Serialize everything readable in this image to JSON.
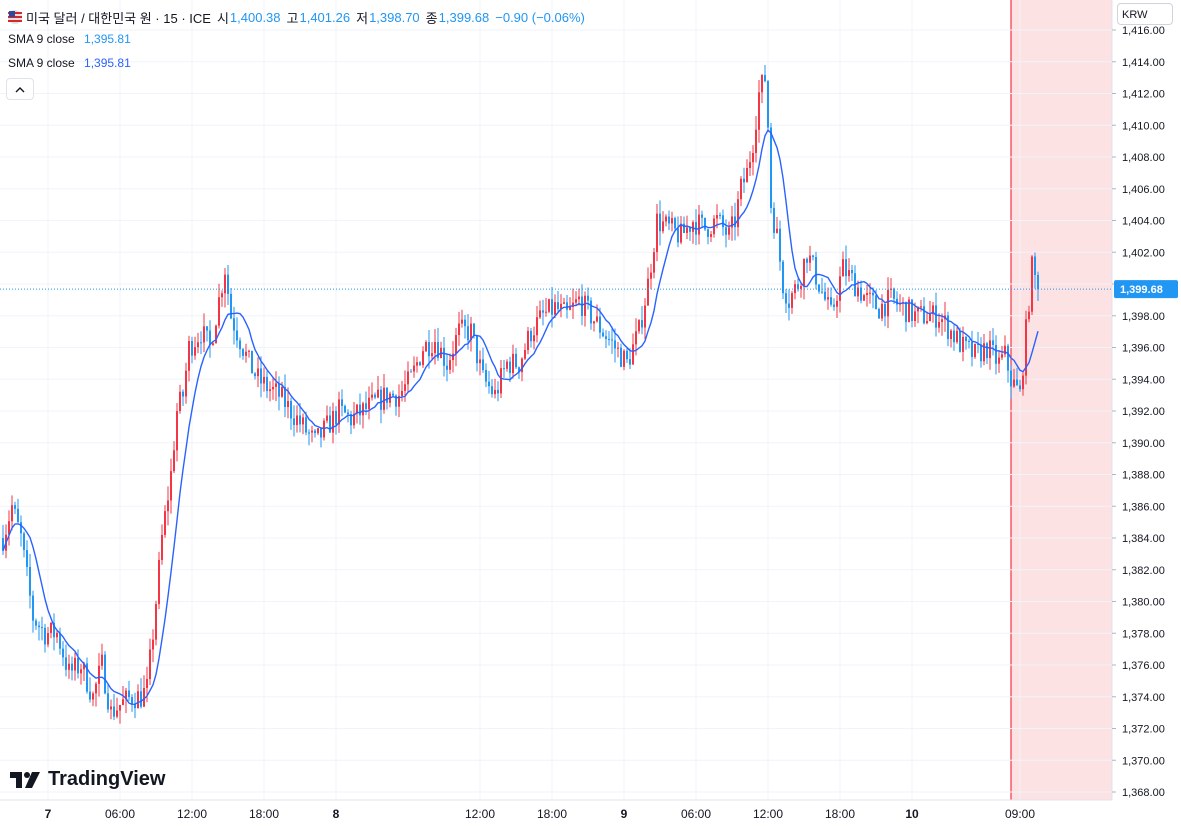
{
  "header": {
    "symbol_name": "미국 달러 / 대한민국 원 · 15 · ICE",
    "open_label": "시",
    "open_value": "1,400.38",
    "high_label": "고",
    "high_value": "1,401.26",
    "low_label": "저",
    "low_value": "1,398.70",
    "close_label": "종",
    "close_value": "1,399.68",
    "change_text": "−0.90 (−0.06%)"
  },
  "indicators": [
    {
      "name": "SMA 9 close",
      "value": "1,395.81"
    },
    {
      "name": "SMA 9 close",
      "value": "1,395.81"
    }
  ],
  "currency_label": "KRW",
  "brand": "TradingView",
  "colors": {
    "up": "#f23645",
    "down": "#2962ff",
    "down_candle": "#2196f3",
    "sma": "#2962ff",
    "session_highlight": "#fde2e4",
    "price_label_bg": "#2196f3",
    "legend_value": "#2196f3",
    "sma_value": "#2962ff"
  },
  "chart_data": {
    "type": "candlestick",
    "y_unit": "KRW",
    "ylim": [
      1367,
      1418
    ],
    "y_ticks": [
      1368,
      1370,
      1372,
      1374,
      1376,
      1378,
      1380,
      1382,
      1384,
      1386,
      1388,
      1390,
      1392,
      1394,
      1396,
      1398,
      1400,
      1402,
      1404,
      1406,
      1408,
      1410,
      1412,
      1414,
      1416
    ],
    "y_tick_labels": [
      "1,368.00",
      "1,370.00",
      "1,372.00",
      "1,374.00",
      "1,376.00",
      "1,378.00",
      "1,380.00",
      "1,382.00",
      "1,384.00",
      "1,386.00",
      "1,388.00",
      "1,390.00",
      "1,392.00",
      "1,394.00",
      "1,396.00",
      "1,398.00",
      "1,400.00",
      "1,402.00",
      "1,404.00",
      "1,406.00",
      "1,408.00",
      "1,410.00",
      "1,412.00",
      "1,414.00",
      "1,416.00"
    ],
    "x_ticks": [
      {
        "label": "7",
        "bold": true,
        "index": 15
      },
      {
        "label": "06:00",
        "bold": false,
        "index": 39
      },
      {
        "label": "12:00",
        "bold": false,
        "index": 63
      },
      {
        "label": "18:00",
        "bold": false,
        "index": 87
      },
      {
        "label": "8",
        "bold": true,
        "index": 111
      },
      {
        "label": "12:00",
        "bold": false,
        "index": 159
      },
      {
        "label": "18:00",
        "bold": false,
        "index": 183
      },
      {
        "label": "9",
        "bold": true,
        "index": 207
      },
      {
        "label": "06:00",
        "bold": false,
        "index": 231
      },
      {
        "label": "12:00",
        "bold": false,
        "index": 255
      },
      {
        "label": "18:00",
        "bold": false,
        "index": 279
      },
      {
        "label": "10",
        "bold": true,
        "index": 303
      },
      {
        "label": "09:00",
        "bold": false,
        "index": 339
      }
    ],
    "session_start_index": 336,
    "last_price": 1399.68,
    "last_price_label": "1,399.68",
    "keypoints": [
      [
        0,
        1384
      ],
      [
        3,
        1386
      ],
      [
        6,
        1384
      ],
      [
        10,
        1379
      ],
      [
        14,
        1378
      ],
      [
        18,
        1378
      ],
      [
        22,
        1375.5
      ],
      [
        26,
        1376
      ],
      [
        30,
        1374
      ],
      [
        33,
        1376
      ],
      [
        36,
        1373
      ],
      [
        39,
        1373.5
      ],
      [
        43,
        1374
      ],
      [
        46,
        1374
      ],
      [
        48,
        1374.5
      ],
      [
        50,
        1378
      ],
      [
        53,
        1384
      ],
      [
        56,
        1388
      ],
      [
        58,
        1392
      ],
      [
        60,
        1393
      ],
      [
        62,
        1396
      ],
      [
        66,
        1397
      ],
      [
        69,
        1396
      ],
      [
        72,
        1399
      ],
      [
        74,
        1401
      ],
      [
        76,
        1398
      ],
      [
        78,
        1397
      ],
      [
        80,
        1396
      ],
      [
        82,
        1395
      ],
      [
        85,
        1394
      ],
      [
        88,
        1393.5
      ],
      [
        92,
        1393
      ],
      [
        96,
        1392
      ],
      [
        100,
        1391
      ],
      [
        104,
        1390
      ],
      [
        108,
        1391
      ],
      [
        112,
        1392
      ],
      [
        116,
        1391.5
      ],
      [
        120,
        1392
      ],
      [
        124,
        1392.5
      ],
      [
        128,
        1393
      ],
      [
        132,
        1393
      ],
      [
        136,
        1394
      ],
      [
        140,
        1396
      ],
      [
        144,
        1396.5
      ],
      [
        148,
        1395
      ],
      [
        152,
        1397
      ],
      [
        156,
        1397
      ],
      [
        160,
        1394
      ],
      [
        164,
        1393
      ],
      [
        168,
        1395
      ],
      [
        172,
        1395
      ],
      [
        176,
        1397
      ],
      [
        180,
        1398
      ],
      [
        184,
        1398.5
      ],
      [
        188,
        1398
      ],
      [
        192,
        1399
      ],
      [
        196,
        1398
      ],
      [
        200,
        1397
      ],
      [
        204,
        1396
      ],
      [
        208,
        1395
      ],
      [
        212,
        1397
      ],
      [
        215,
        1400
      ],
      [
        218,
        1404
      ],
      [
        222,
        1403.5
      ],
      [
        226,
        1403
      ],
      [
        230,
        1404
      ],
      [
        234,
        1403.5
      ],
      [
        238,
        1404
      ],
      [
        242,
        1403
      ],
      [
        244,
        1404
      ],
      [
        246,
        1406
      ],
      [
        248,
        1407
      ],
      [
        250,
        1409
      ],
      [
        252,
        1412
      ],
      [
        254,
        1413
      ],
      [
        255,
        1410
      ],
      [
        256,
        1405
      ],
      [
        258,
        1403
      ],
      [
        260,
        1400
      ],
      [
        262,
        1399
      ],
      [
        265,
        1400
      ],
      [
        268,
        1402
      ],
      [
        272,
        1400
      ],
      [
        276,
        1398
      ],
      [
        280,
        1401
      ],
      [
        284,
        1400
      ],
      [
        288,
        1399
      ],
      [
        292,
        1398.5
      ],
      [
        296,
        1399
      ],
      [
        300,
        1398.5
      ],
      [
        304,
        1398
      ],
      [
        308,
        1398
      ],
      [
        312,
        1398
      ],
      [
        316,
        1397
      ],
      [
        320,
        1396
      ],
      [
        324,
        1395.5
      ],
      [
        328,
        1396
      ],
      [
        332,
        1395
      ],
      [
        334,
        1395.5
      ],
      [
        336,
        1394
      ],
      [
        339,
        1393
      ],
      [
        341,
        1397
      ],
      [
        343,
        1401
      ],
      [
        345,
        1399.68
      ]
    ]
  }
}
